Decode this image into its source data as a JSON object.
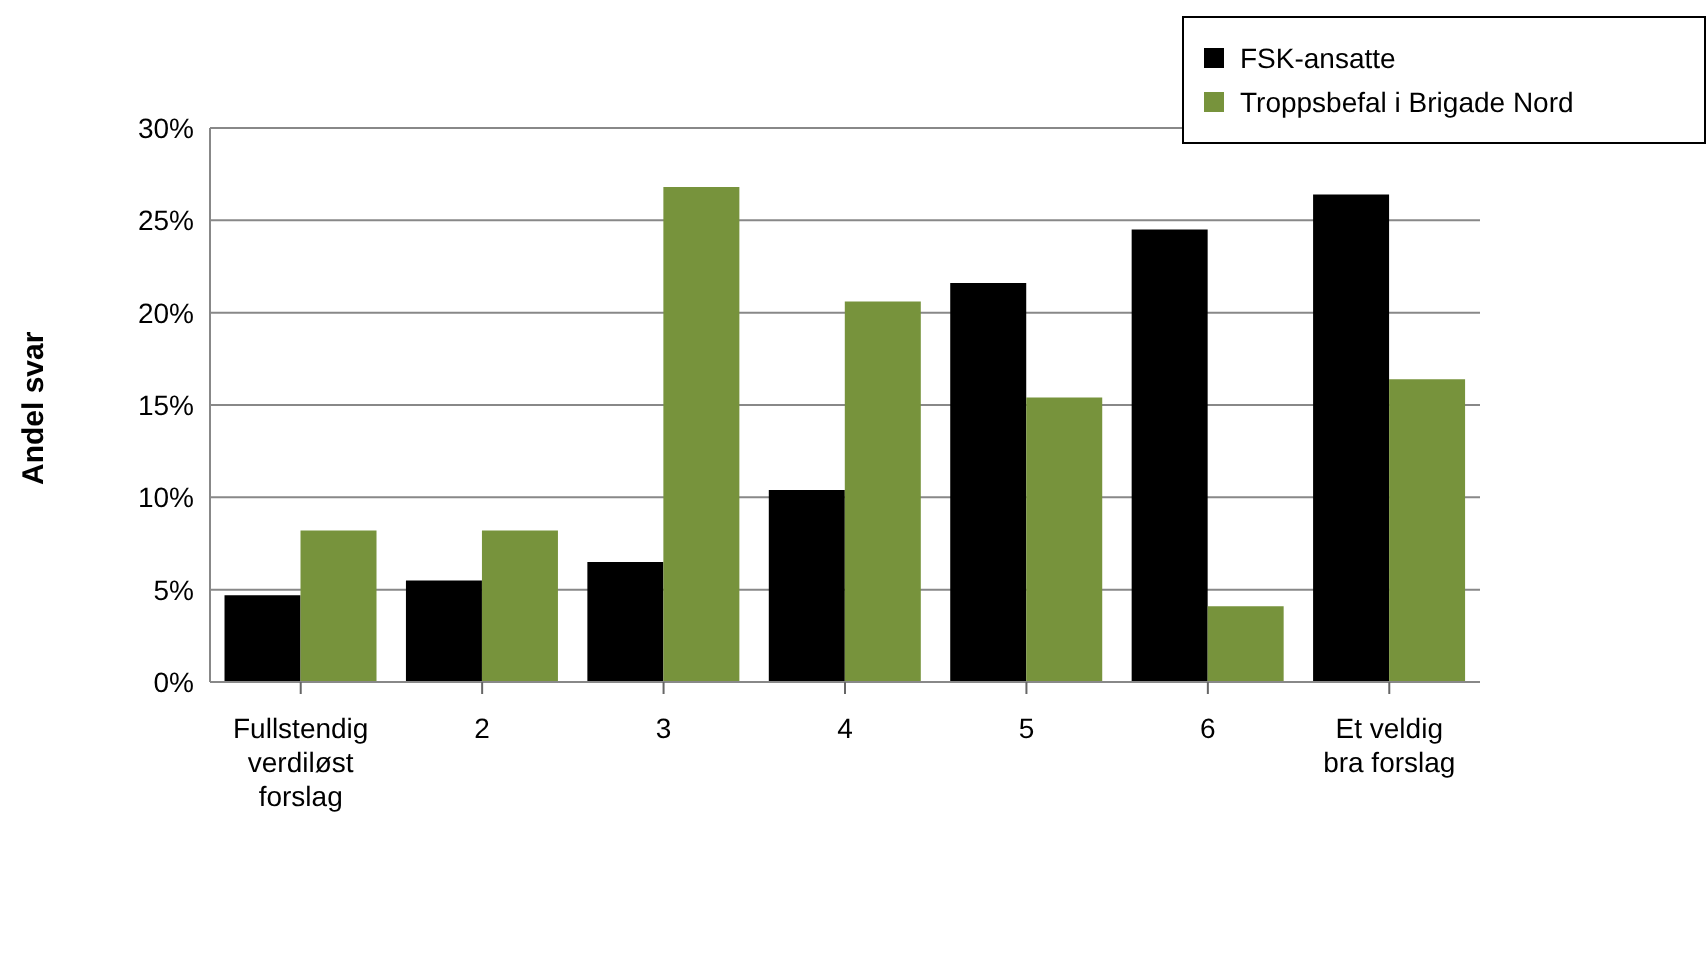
{
  "chart_data": {
    "type": "bar",
    "ylabel": "Andel svar",
    "categories": [
      "Fullstendig verdiløst forslag",
      "2",
      "3",
      "4",
      "5",
      "6",
      "Et veldig bra forslag"
    ],
    "series": [
      {
        "name": "FSK-ansatte",
        "color": "#000000",
        "values": [
          4.7,
          5.5,
          6.5,
          10.4,
          21.6,
          24.5,
          26.4
        ]
      },
      {
        "name": "Troppsbefal i Brigade Nord",
        "color": "#77933c",
        "values": [
          8.2,
          8.2,
          26.8,
          20.6,
          15.4,
          4.1,
          16.4
        ]
      }
    ],
    "ylim": [
      0,
      30
    ],
    "yticks": [
      {
        "value": 0,
        "label": "0%"
      },
      {
        "value": 5,
        "label": "5%"
      },
      {
        "value": 10,
        "label": "10%"
      },
      {
        "value": 15,
        "label": "15%"
      },
      {
        "value": 20,
        "label": "20%"
      },
      {
        "value": 25,
        "label": "25%"
      },
      {
        "value": 30,
        "label": "30%"
      }
    ],
    "grid": "y",
    "legend": "top right"
  }
}
